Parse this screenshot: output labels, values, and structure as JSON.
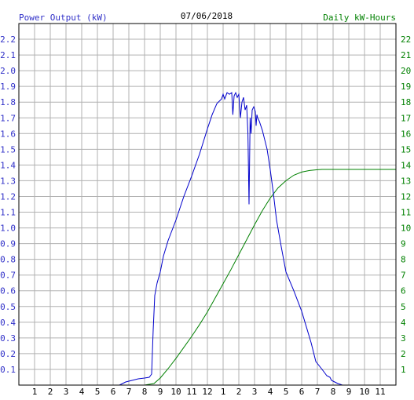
{
  "chart_data": {
    "type": "line",
    "title": "07/06/2018",
    "left_axis_label": "Power Output (kW)",
    "right_axis_label": "Daily kW-Hours",
    "colors": {
      "left_axis_label": "#3030c8",
      "right_axis_label": "#008000",
      "power_line": "#0000cc",
      "energy_line": "#008000",
      "grid": "#b0b0b0",
      "frame": "#000000",
      "title": "#000000"
    },
    "x_ticks": [
      "1",
      "2",
      "3",
      "4",
      "5",
      "6",
      "7",
      "8",
      "9",
      "10",
      "11",
      "12",
      "1",
      "2",
      "3",
      "4",
      "5",
      "6",
      "7",
      "8",
      "9",
      "10",
      "11"
    ],
    "x_range_hours": [
      0,
      24
    ],
    "ylim_left": [
      0,
      2.3
    ],
    "yticks_left": [
      "0.1",
      "0.2",
      "0.3",
      "0.4",
      "0.5",
      "0.6",
      "0.7",
      "0.8",
      "0.9",
      "1.0",
      "1.1",
      "1.2",
      "1.3",
      "1.4",
      "1.5",
      "1.6",
      "1.7",
      "1.8",
      "1.9",
      "2.0",
      "2.1",
      "2.2"
    ],
    "ylim_right": [
      0,
      23
    ],
    "yticks_right": [
      "1",
      "2",
      "3",
      "4",
      "5",
      "6",
      "7",
      "8",
      "9",
      "10",
      "11",
      "12",
      "13",
      "14",
      "15",
      "16",
      "17",
      "18",
      "19",
      "20",
      "21",
      "22"
    ],
    "series": [
      {
        "axis": "left",
        "x": [
          6.4,
          6.8,
          7.2,
          7.6,
          8.0,
          8.3,
          8.45,
          8.55,
          8.65,
          8.8,
          9.0,
          9.2,
          9.5,
          10.0,
          10.5,
          11.0,
          11.5,
          12.0,
          12.3,
          12.6,
          12.9,
          13.0,
          13.1,
          13.25,
          13.4,
          13.55,
          13.62,
          13.7,
          13.8,
          13.9,
          14.0,
          14.1,
          14.2,
          14.3,
          14.4,
          14.5,
          14.58,
          14.65,
          14.72,
          14.78,
          14.85,
          14.95,
          15.05,
          15.1,
          15.15,
          15.2,
          15.3,
          15.5,
          15.8,
          16.0,
          16.2,
          16.4,
          16.7,
          17.0,
          17.5,
          18.0,
          18.3,
          18.6,
          18.9,
          19.3,
          19.6,
          19.8,
          19.9,
          20.1,
          20.3,
          20.6,
          20.8,
          21.0
        ],
        "y": [
          0.0,
          0.02,
          0.03,
          0.04,
          0.045,
          0.05,
          0.07,
          0.35,
          0.57,
          0.65,
          0.72,
          0.82,
          0.92,
          1.05,
          1.2,
          1.33,
          1.47,
          1.63,
          1.72,
          1.79,
          1.82,
          1.85,
          1.82,
          1.86,
          1.85,
          1.86,
          1.72,
          1.84,
          1.86,
          1.83,
          1.85,
          1.7,
          1.8,
          1.83,
          1.75,
          1.78,
          1.6,
          1.15,
          1.7,
          1.6,
          1.75,
          1.77,
          1.74,
          1.65,
          1.72,
          1.7,
          1.68,
          1.62,
          1.5,
          1.37,
          1.22,
          1.05,
          0.88,
          0.72,
          0.6,
          0.47,
          0.37,
          0.27,
          0.15,
          0.1,
          0.06,
          0.05,
          0.03,
          0.02,
          0.01,
          0.0,
          0.0,
          0.0
        ]
      },
      {
        "axis": "right",
        "x": [
          6.5,
          8.0,
          8.6,
          9.0,
          9.5,
          10.0,
          10.5,
          11.0,
          11.5,
          12.0,
          12.5,
          13.0,
          13.5,
          14.0,
          14.5,
          15.0,
          15.5,
          16.0,
          16.5,
          17.0,
          17.5,
          18.0,
          18.5,
          19.0,
          19.3,
          19.6,
          20.0,
          21.0,
          22.0,
          23.0,
          24.0
        ],
        "y": [
          0.0,
          0.0,
          0.1,
          0.45,
          1.05,
          1.7,
          2.4,
          3.1,
          3.85,
          4.65,
          5.55,
          6.45,
          7.35,
          8.3,
          9.25,
          10.2,
          11.1,
          11.9,
          12.55,
          13.0,
          13.35,
          13.55,
          13.65,
          13.7,
          13.72,
          13.72,
          13.72,
          13.72,
          13.72,
          13.72,
          13.72
        ]
      }
    ]
  }
}
